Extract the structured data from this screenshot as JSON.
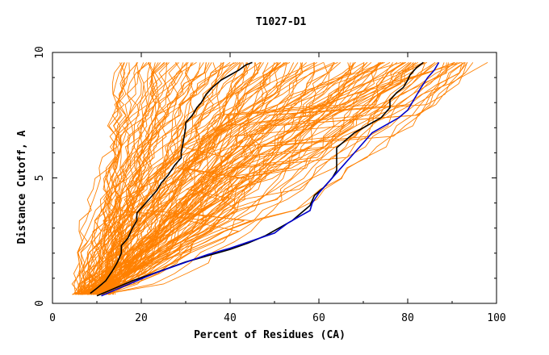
{
  "chart_data": {
    "type": "line",
    "title": "T1027-D1",
    "xlabel": "Percent of Residues (CA)",
    "ylabel": "Distance Cutoff, A",
    "xlim": [
      0,
      100
    ],
    "ylim": [
      0,
      10
    ],
    "x_ticks": [
      "0",
      "20",
      "40",
      "60",
      "80",
      "100"
    ],
    "y_ticks": [
      "0",
      "5",
      "10"
    ],
    "grid": false,
    "legend": "none",
    "colors": {
      "models": "#ff8000",
      "highlight_black": "#000000",
      "highlight_blue": "#0000cc"
    },
    "highlighted_series": [
      {
        "color": "black",
        "x": [
          8.5,
          10,
          12,
          13.5,
          14.5,
          15.5,
          15.5,
          17,
          18,
          19,
          19,
          20.5,
          22,
          23.5,
          24.5,
          26,
          27.5,
          29,
          29,
          30,
          30,
          31.5,
          32.5,
          33.5,
          34.5,
          36,
          38,
          40,
          42,
          43.5,
          45
        ],
        "y": [
          0.4,
          0.6,
          0.9,
          1.3,
          1.6,
          2.0,
          2.3,
          2.6,
          3.0,
          3.3,
          3.6,
          3.9,
          4.2,
          4.5,
          4.8,
          5.1,
          5.5,
          5.8,
          6.0,
          7.0,
          7.2,
          7.5,
          7.8,
          8.0,
          8.3,
          8.6,
          8.9,
          9.1,
          9.3,
          9.5,
          9.6
        ]
      },
      {
        "color": "black",
        "x": [
          10,
          14,
          18,
          22,
          26,
          30,
          35,
          40,
          44,
          48,
          51,
          54,
          56,
          58,
          59,
          61,
          63,
          64,
          64,
          66,
          68,
          70,
          72,
          74,
          75,
          76,
          76,
          77.5,
          79,
          80,
          80.5,
          82,
          83.5
        ],
        "y": [
          0.3,
          0.6,
          0.9,
          1.15,
          1.4,
          1.65,
          1.9,
          2.15,
          2.4,
          2.7,
          3.0,
          3.3,
          3.6,
          3.9,
          4.3,
          4.6,
          5.0,
          5.3,
          6.2,
          6.5,
          6.8,
          7.0,
          7.2,
          7.4,
          7.6,
          7.8,
          8.1,
          8.4,
          8.6,
          8.9,
          9.1,
          9.4,
          9.6
        ]
      },
      {
        "color": "blue",
        "x": [
          11,
          15,
          19,
          23,
          27,
          31,
          35,
          40,
          45,
          50,
          53,
          56,
          58,
          58.5,
          60,
          62,
          64,
          66,
          68,
          70,
          72,
          75,
          78,
          80,
          81,
          82,
          83,
          84.5,
          86,
          87
        ],
        "y": [
          0.3,
          0.6,
          0.9,
          1.2,
          1.45,
          1.7,
          1.95,
          2.2,
          2.5,
          2.8,
          3.2,
          3.5,
          3.7,
          4.0,
          4.4,
          4.8,
          5.2,
          5.6,
          6.0,
          6.4,
          6.8,
          7.1,
          7.4,
          7.7,
          8.0,
          8.3,
          8.6,
          9.0,
          9.3,
          9.6
        ]
      }
    ]
  }
}
